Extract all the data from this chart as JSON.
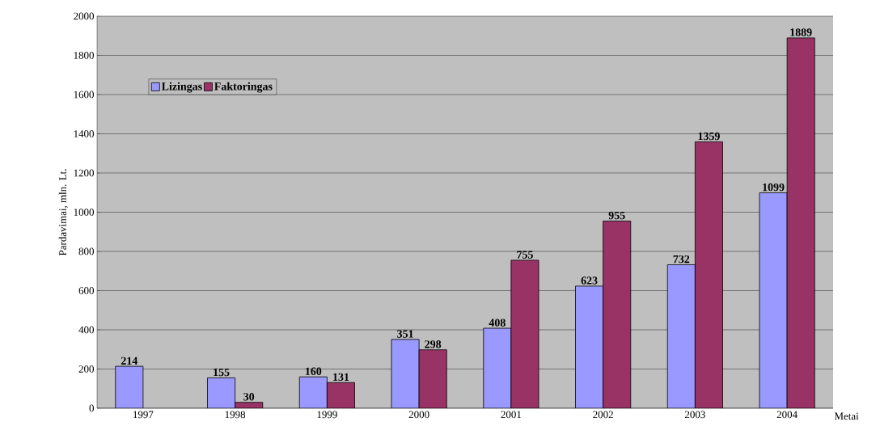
{
  "chart_data": {
    "type": "bar",
    "xlabel": "Metai",
    "ylabel": "Pardavimai, mln. Lt.",
    "categories": [
      "1997",
      "1998",
      "1999",
      "2000",
      "2001",
      "2002",
      "2003",
      "2004"
    ],
    "series": [
      {
        "name": "Lizingas",
        "color": "#9999ff",
        "values": [
          214,
          155,
          160,
          351,
          408,
          623,
          732,
          1099
        ]
      },
      {
        "name": "Faktoringas",
        "color": "#993366",
        "values": [
          null,
          30,
          131,
          298,
          755,
          955,
          1359,
          1889
        ]
      }
    ],
    "ylim": [
      0,
      2000
    ],
    "yticks": [
      0,
      200,
      400,
      600,
      800,
      1000,
      1200,
      1400,
      1600,
      1800,
      2000
    ],
    "grid": "y",
    "legend": "top left",
    "data_labels": true
  }
}
